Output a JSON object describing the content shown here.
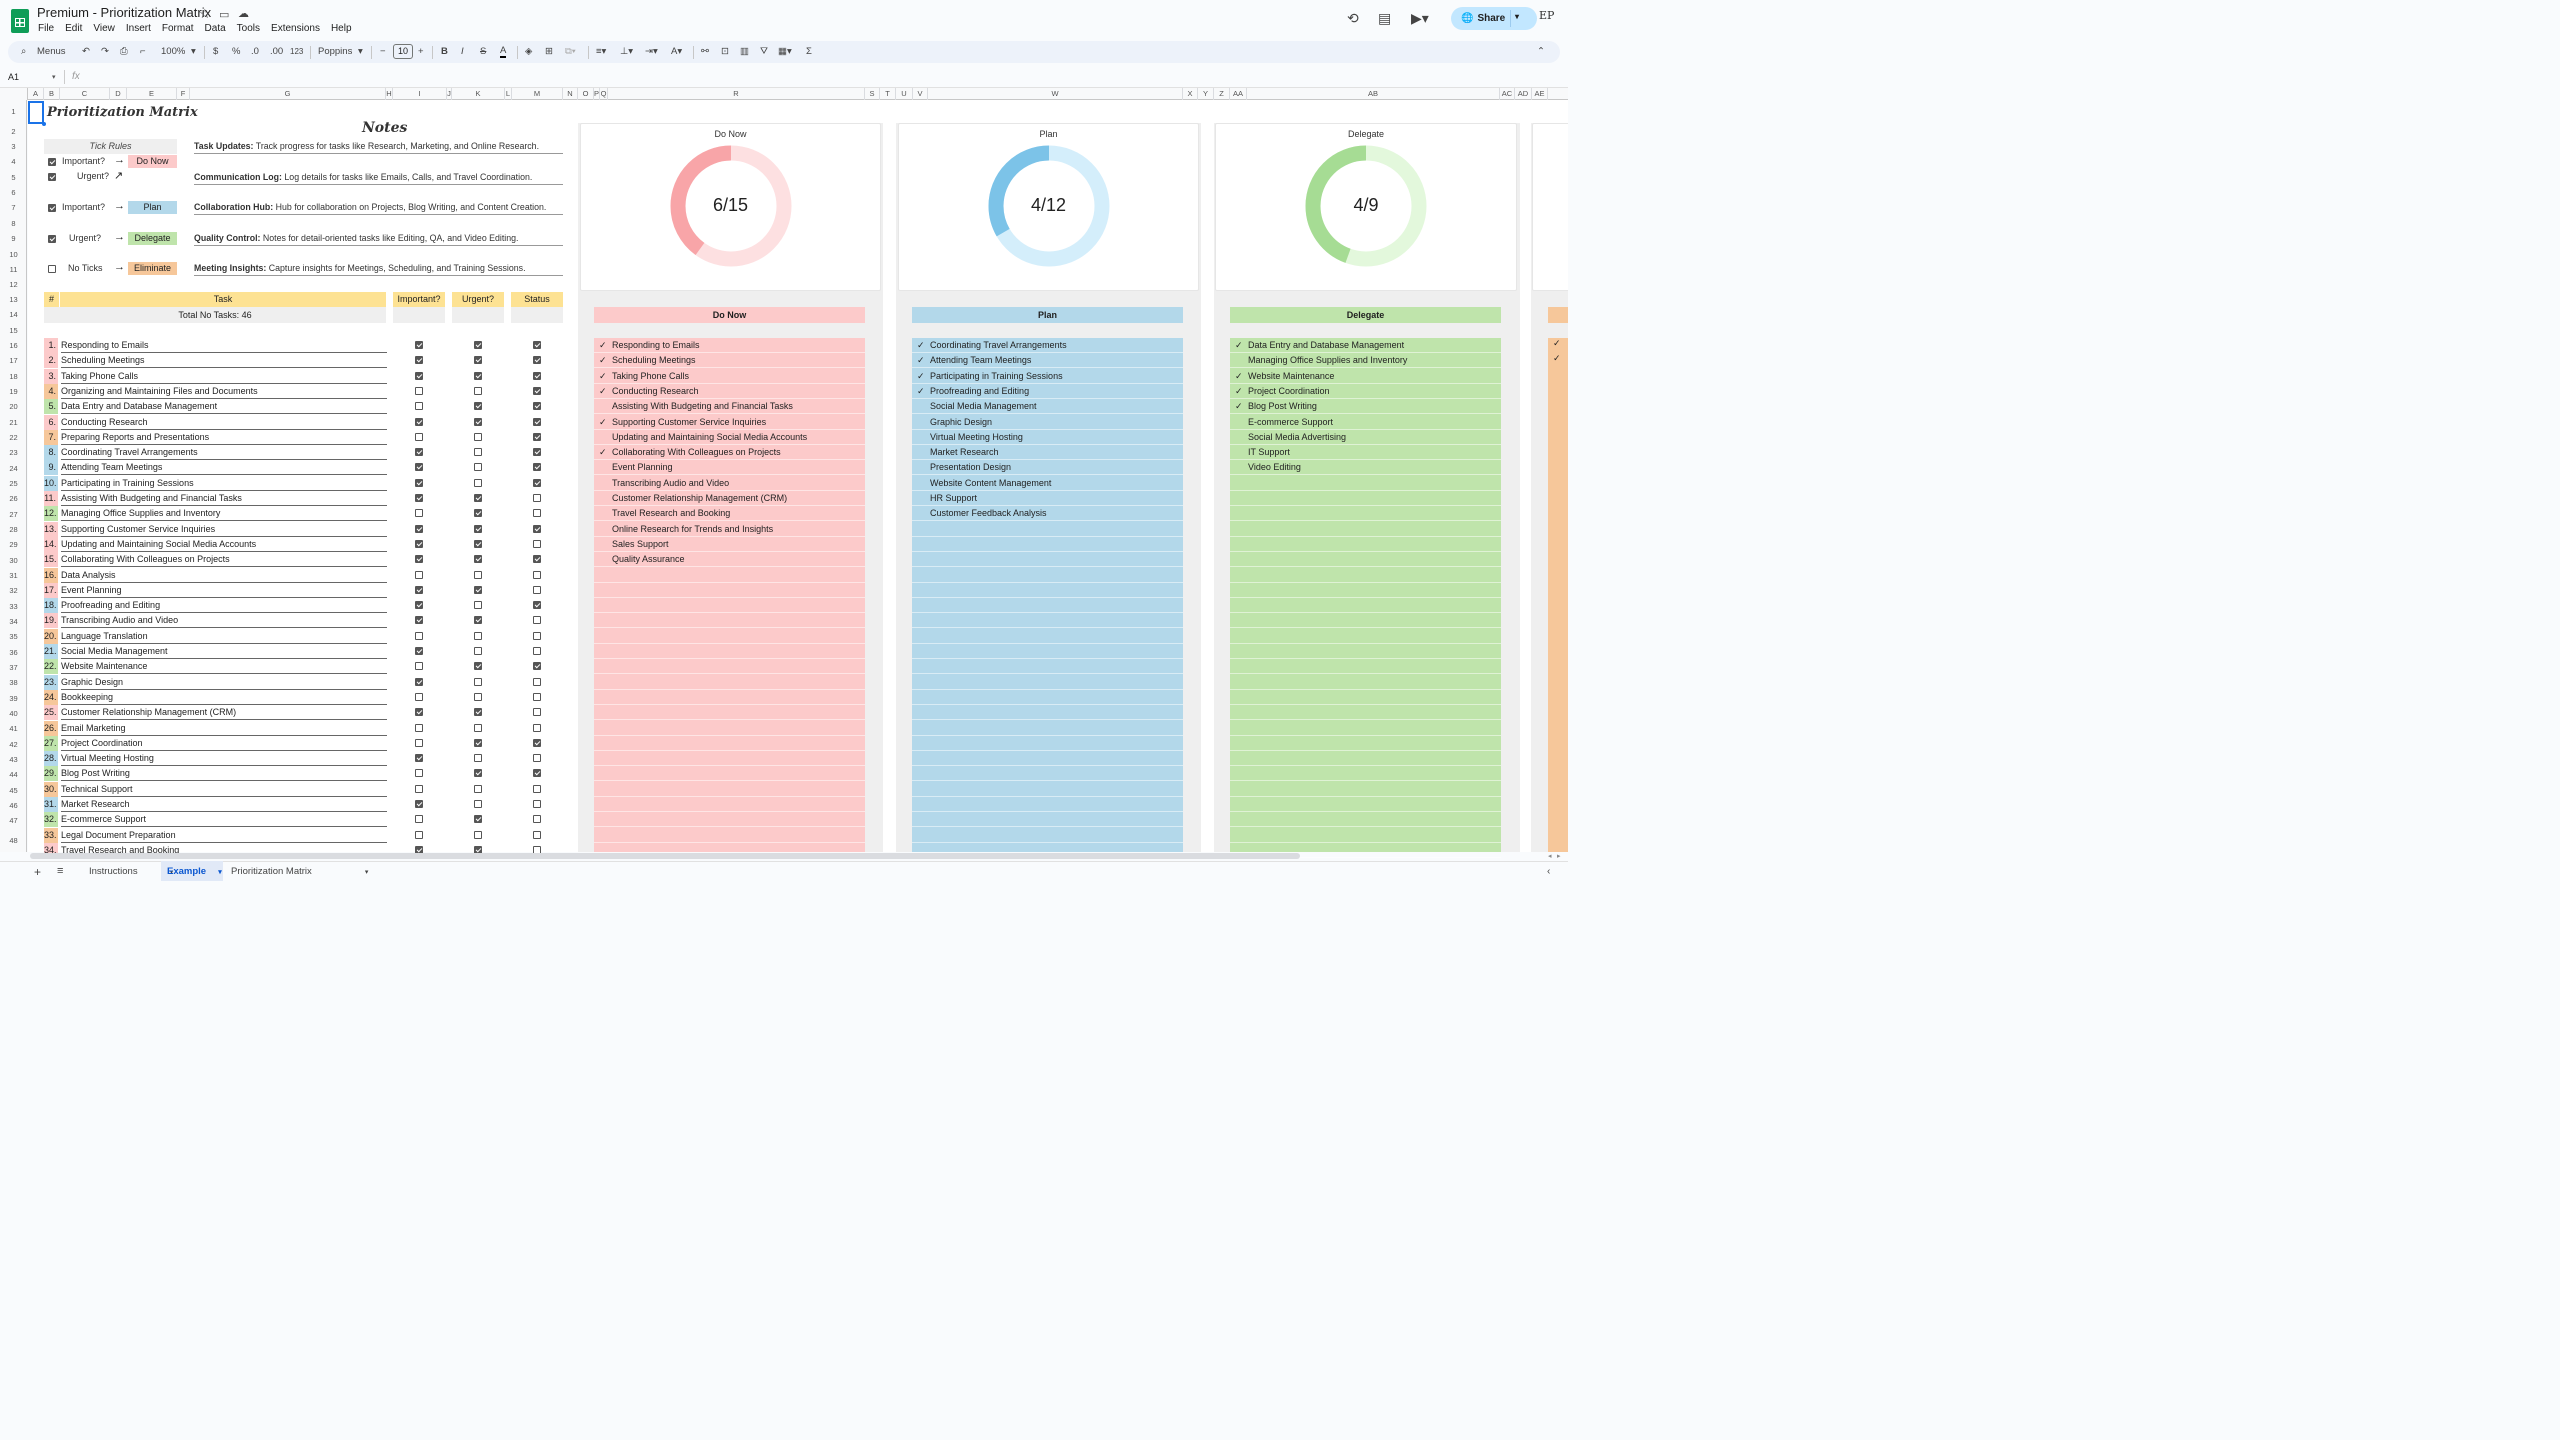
{
  "app": {
    "title": "Premium - Prioritization Matrix",
    "menus": [
      "File",
      "Edit",
      "View",
      "Insert",
      "Format",
      "Data",
      "Tools",
      "Extensions",
      "Help"
    ],
    "share_label": "Share",
    "avatar_text": "EP"
  },
  "toolbar": {
    "search": "Menus",
    "zoom": "100%",
    "currency": "$",
    "percent": "%",
    "dec_dec": ".0",
    "dec_inc": ".00",
    "num_fmt": "123",
    "font": "Poppins",
    "font_size": "10",
    "bold": "B",
    "italic": "I",
    "strike": "S",
    "text_color": "A",
    "sum": "Σ"
  },
  "formula": {
    "cell": "A1",
    "fx": "fx"
  },
  "columns": [
    "A",
    "B",
    "C",
    "D",
    "E",
    "F",
    "G",
    "H",
    "I",
    "J",
    "K",
    "L",
    "M",
    "N",
    "O",
    "P",
    "Q",
    "R",
    "S",
    "T",
    "U",
    "V",
    "W",
    "X",
    "Y",
    "Z",
    "AA",
    "AB",
    "AC",
    "AD",
    "AE"
  ],
  "rows": [
    "1",
    "2",
    "3",
    "4",
    "5",
    "6",
    "7",
    "8",
    "9",
    "10",
    "11",
    "12",
    "13",
    "14",
    "15",
    "16",
    "17",
    "18",
    "19",
    "20",
    "21",
    "22",
    "23",
    "24",
    "25",
    "26",
    "27",
    "28",
    "29",
    "30",
    "31",
    "32",
    "33",
    "34",
    "35",
    "36",
    "37",
    "38",
    "39",
    "40",
    "41",
    "42",
    "43",
    "44",
    "45",
    "46",
    "47",
    "48"
  ],
  "sheet_title": "Prioritization Matrix",
  "notes_title": "Notes",
  "tick_rules": {
    "title": "Tick Rules",
    "rows": [
      {
        "label": "Important?",
        "arrow": "→",
        "badge": "Do Now",
        "checked": true
      },
      {
        "label": "Urgent?",
        "arrow": "↗",
        "badge": "",
        "checked": true
      },
      {
        "label": "Important?",
        "arrow": "→",
        "badge": "Plan",
        "checked": true
      },
      {
        "label": "Urgent?",
        "arrow": "→",
        "badge": "Delegate",
        "checked": true
      },
      {
        "label": "No Ticks",
        "arrow": "→",
        "badge": "Eliminate",
        "checked": false
      }
    ]
  },
  "notes": [
    {
      "bold": "Task Updates:",
      "text": " Track progress for tasks like Research, Marketing, and Online Research."
    },
    {
      "bold": "Communication Log:",
      "text": " Log details for tasks like Emails, Calls, and Travel Coordination."
    },
    {
      "bold": "Collaboration Hub:",
      "text": " Hub for collaboration on Projects, Blog Writing, and Content Creation."
    },
    {
      "bold": "Quality Control:",
      "text": " Notes for detail-oriented tasks like Editing, QA, and Video Editing."
    },
    {
      "bold": "Meeting Insights:",
      "text": " Capture insights for Meetings, Scheduling, and Training Sessions."
    }
  ],
  "table": {
    "headers": {
      "num": "#",
      "task": "Task",
      "important": "Important?",
      "urgent": "Urgent?",
      "status": "Status"
    },
    "total": "Total No Tasks: 46",
    "tasks": [
      {
        "n": "1.",
        "name": "Responding to Emails",
        "i": true,
        "u": true,
        "s": true
      },
      {
        "n": "2.",
        "name": "Scheduling Meetings",
        "i": true,
        "u": true,
        "s": true
      },
      {
        "n": "3.",
        "name": "Taking Phone Calls",
        "i": true,
        "u": true,
        "s": true
      },
      {
        "n": "4.",
        "name": "Organizing and Maintaining Files and Documents",
        "i": false,
        "u": false,
        "s": true
      },
      {
        "n": "5.",
        "name": "Data Entry and Database Management",
        "i": false,
        "u": true,
        "s": true
      },
      {
        "n": "6.",
        "name": "Conducting Research",
        "i": true,
        "u": true,
        "s": true
      },
      {
        "n": "7.",
        "name": "Preparing Reports and Presentations",
        "i": false,
        "u": false,
        "s": true
      },
      {
        "n": "8.",
        "name": "Coordinating Travel Arrangements",
        "i": true,
        "u": false,
        "s": true
      },
      {
        "n": "9.",
        "name": "Attending Team Meetings",
        "i": true,
        "u": false,
        "s": true
      },
      {
        "n": "10.",
        "name": "Participating in Training Sessions",
        "i": true,
        "u": false,
        "s": true
      },
      {
        "n": "11.",
        "name": "Assisting With Budgeting and Financial Tasks",
        "i": true,
        "u": true,
        "s": false
      },
      {
        "n": "12.",
        "name": "Managing Office Supplies and Inventory",
        "i": false,
        "u": true,
        "s": false
      },
      {
        "n": "13.",
        "name": "Supporting Customer Service Inquiries",
        "i": true,
        "u": true,
        "s": true
      },
      {
        "n": "14.",
        "name": "Updating and Maintaining Social Media Accounts",
        "i": true,
        "u": true,
        "s": false
      },
      {
        "n": "15.",
        "name": "Collaborating With Colleagues on Projects",
        "i": true,
        "u": true,
        "s": true
      },
      {
        "n": "16.",
        "name": "Data Analysis",
        "i": false,
        "u": false,
        "s": false
      },
      {
        "n": "17.",
        "name": "Event Planning",
        "i": true,
        "u": true,
        "s": false
      },
      {
        "n": "18.",
        "name": "Proofreading and Editing",
        "i": true,
        "u": false,
        "s": true
      },
      {
        "n": "19.",
        "name": "Transcribing Audio and Video",
        "i": true,
        "u": true,
        "s": false
      },
      {
        "n": "20.",
        "name": "Language Translation",
        "i": false,
        "u": false,
        "s": false
      },
      {
        "n": "21.",
        "name": "Social Media Management",
        "i": true,
        "u": false,
        "s": false
      },
      {
        "n": "22.",
        "name": "Website Maintenance",
        "i": false,
        "u": true,
        "s": true
      },
      {
        "n": "23.",
        "name": "Graphic Design",
        "i": true,
        "u": false,
        "s": false
      },
      {
        "n": "24.",
        "name": "Bookkeeping",
        "i": false,
        "u": false,
        "s": false
      },
      {
        "n": "25.",
        "name": "Customer Relationship Management (CRM)",
        "i": true,
        "u": true,
        "s": false
      },
      {
        "n": "26.",
        "name": "Email Marketing",
        "i": false,
        "u": false,
        "s": false
      },
      {
        "n": "27.",
        "name": "Project Coordination",
        "i": false,
        "u": true,
        "s": true
      },
      {
        "n": "28.",
        "name": "Virtual Meeting Hosting",
        "i": true,
        "u": false,
        "s": false
      },
      {
        "n": "29.",
        "name": "Blog Post Writing",
        "i": false,
        "u": true,
        "s": true
      },
      {
        "n": "30.",
        "name": "Technical Support",
        "i": false,
        "u": false,
        "s": false
      },
      {
        "n": "31.",
        "name": "Market Research",
        "i": true,
        "u": false,
        "s": false
      },
      {
        "n": "32.",
        "name": "E-commerce Support",
        "i": false,
        "u": true,
        "s": false
      },
      {
        "n": "33.",
        "name": "Legal Document Preparation",
        "i": false,
        "u": false,
        "s": false
      },
      {
        "n": "34.",
        "name": "Travel Research and Booking",
        "i": true,
        "u": true,
        "s": false
      }
    ]
  },
  "quadrants": [
    {
      "title": "Do Now",
      "done": 6,
      "total": 15,
      "ratio": "6/15",
      "color": "#f8a5a8",
      "light": "#fde0e1",
      "list_bg": "#fccaca",
      "header_bg": "#fccaca",
      "items": [
        {
          "c": true,
          "t": "Responding to Emails"
        },
        {
          "c": true,
          "t": "Scheduling Meetings"
        },
        {
          "c": true,
          "t": "Taking Phone Calls"
        },
        {
          "c": true,
          "t": "Conducting Research"
        },
        {
          "c": false,
          "t": "Assisting With Budgeting and Financial Tasks"
        },
        {
          "c": true,
          "t": "Supporting Customer Service Inquiries"
        },
        {
          "c": false,
          "t": "Updating and Maintaining Social Media Accounts"
        },
        {
          "c": true,
          "t": "Collaborating With Colleagues on Projects"
        },
        {
          "c": false,
          "t": "Event Planning"
        },
        {
          "c": false,
          "t": "Transcribing Audio and Video"
        },
        {
          "c": false,
          "t": "Customer Relationship Management (CRM)"
        },
        {
          "c": false,
          "t": "Travel Research and Booking"
        },
        {
          "c": false,
          "t": "Online Research for Trends and Insights"
        },
        {
          "c": false,
          "t": "Sales Support"
        },
        {
          "c": false,
          "t": "Quality Assurance"
        }
      ]
    },
    {
      "title": "Plan",
      "done": 4,
      "total": 12,
      "ratio": "4/12",
      "color": "#7cc3e8",
      "light": "#d4eefb",
      "list_bg": "#b3d8ea",
      "header_bg": "#b3d8ea",
      "items": [
        {
          "c": true,
          "t": "Coordinating Travel Arrangements"
        },
        {
          "c": true,
          "t": "Attending Team Meetings"
        },
        {
          "c": true,
          "t": "Participating in Training Sessions"
        },
        {
          "c": true,
          "t": "Proofreading and Editing"
        },
        {
          "c": false,
          "t": "Social Media Management"
        },
        {
          "c": false,
          "t": "Graphic Design"
        },
        {
          "c": false,
          "t": "Virtual Meeting Hosting"
        },
        {
          "c": false,
          "t": "Market Research"
        },
        {
          "c": false,
          "t": "Presentation Design"
        },
        {
          "c": false,
          "t": "Website Content Management"
        },
        {
          "c": false,
          "t": "HR Support"
        },
        {
          "c": false,
          "t": "Customer Feedback Analysis"
        }
      ]
    },
    {
      "title": "Delegate",
      "done": 4,
      "total": 9,
      "ratio": "4/9",
      "color": "#a6dc94",
      "light": "#e3f8dc",
      "list_bg": "#bfe4ab",
      "header_bg": "#bfe4ab",
      "items": [
        {
          "c": true,
          "t": "Data Entry and Database Management"
        },
        {
          "c": false,
          "t": "Managing Office Supplies and Inventory"
        },
        {
          "c": true,
          "t": "Website Maintenance"
        },
        {
          "c": true,
          "t": "Project Coordination"
        },
        {
          "c": true,
          "t": "Blog Post Writing"
        },
        {
          "c": false,
          "t": "E-commerce Support"
        },
        {
          "c": false,
          "t": "Social Media Advertising"
        },
        {
          "c": false,
          "t": "IT Support"
        },
        {
          "c": false,
          "t": "Video Editing"
        }
      ]
    }
  ],
  "fourth_panel": {
    "color": "#f6c79a",
    "checks": [
      "✓",
      "✓"
    ]
  },
  "sheet_tabs": [
    {
      "label": "Instructions",
      "active": false
    },
    {
      "label": "Example",
      "active": true
    },
    {
      "label": "Prioritization Matrix",
      "active": false
    }
  ],
  "num_colors": [
    "#fccaca",
    "#fccaca",
    "#fccaca",
    "#f6c79a",
    "#bfe4ab",
    "#fccaca",
    "#f6c79a",
    "#b3d8ea",
    "#b3d8ea",
    "#b3d8ea",
    "#fccaca",
    "#bfe4ab",
    "#fccaca",
    "#fccaca",
    "#fccaca",
    "#f6c79a",
    "#fccaca",
    "#b3d8ea",
    "#fccaca",
    "#f6c79a",
    "#b3d8ea",
    "#bfe4ab",
    "#b3d8ea",
    "#f6c79a",
    "#fccaca",
    "#f6c79a",
    "#bfe4ab",
    "#b3d8ea",
    "#bfe4ab",
    "#f6c79a",
    "#b3d8ea",
    "#bfe4ab",
    "#f6c79a",
    "#fccaca"
  ]
}
